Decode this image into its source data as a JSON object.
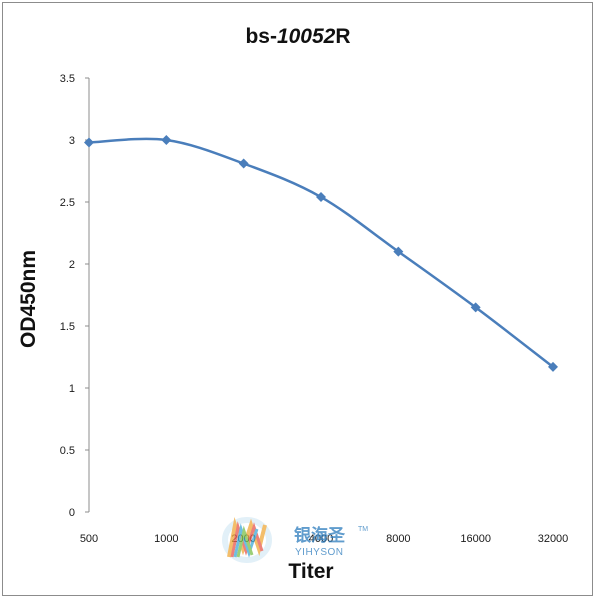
{
  "chart_data": {
    "type": "line",
    "title_prefix": "bs-",
    "title_italic": "10052",
    "title_suffix": "R",
    "xlabel": "Titer",
    "ylabel": "OD450nm",
    "categories": [
      "500",
      "1000",
      "2000",
      "4000",
      "8000",
      "16000",
      "32000"
    ],
    "series": [
      {
        "values": [
          2.98,
          3.0,
          2.81,
          2.54,
          2.1,
          1.65,
          1.17
        ]
      }
    ],
    "ylim": [
      0,
      3.5
    ],
    "yticks": [
      "0",
      "0.5",
      "1",
      "1.5",
      "2",
      "2.5",
      "3",
      "3.5"
    ],
    "grid": false,
    "legend": "none",
    "line_color": "#4a7ebb",
    "marker": "diamond"
  },
  "watermark": {
    "chinese": "银海圣",
    "english": "YIHYSON",
    "tm": "TM",
    "icon": "rainbow-logo-icon"
  }
}
